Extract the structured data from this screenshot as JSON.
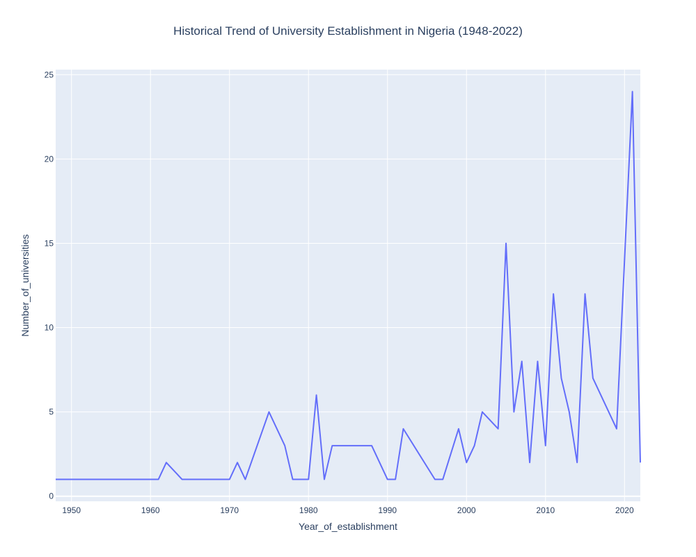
{
  "chart_data": {
    "type": "line",
    "title": "Historical Trend of University Establishment in Nigeria (1948-2022)",
    "xlabel": "Year_of_establishment",
    "ylabel": "Number_of_universities",
    "xlim": [
      1948,
      2022
    ],
    "ylim": [
      -0.3,
      25.3
    ],
    "x_ticks": [
      1950,
      1960,
      1970,
      1980,
      1990,
      2000,
      2010,
      2020
    ],
    "y_ticks": [
      0,
      5,
      10,
      15,
      20,
      25
    ],
    "grid": true,
    "series": [
      {
        "color": "#636efa",
        "x": [
          1948,
          1961,
          1962,
          1964,
          1970,
          1971,
          1972,
          1975,
          1977,
          1978,
          1980,
          1981,
          1982,
          1983,
          1988,
          1990,
          1991,
          1992,
          1996,
          1997,
          1999,
          2000,
          2001,
          2002,
          2004,
          2005,
          2006,
          2007,
          2008,
          2009,
          2010,
          2011,
          2012,
          2013,
          2014,
          2015,
          2016,
          2019,
          2021,
          2022
        ],
        "y": [
          1,
          1,
          2,
          1,
          1,
          2,
          1,
          5,
          3,
          1,
          1,
          6,
          1,
          3,
          3,
          1,
          1,
          4,
          1,
          1,
          4,
          2,
          3,
          5,
          4,
          15,
          5,
          8,
          2,
          8,
          3,
          12,
          7,
          5,
          2,
          12,
          7,
          4,
          24,
          2
        ]
      }
    ]
  },
  "colors": {
    "plot_background": "#e5ecf6",
    "line": "#636efa",
    "text": "#2a3f5f"
  }
}
